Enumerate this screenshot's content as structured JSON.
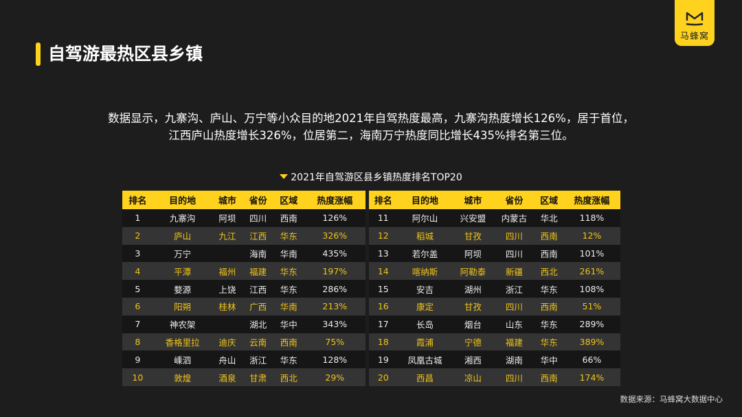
{
  "title": "自驾游最热区县乡镇",
  "logo_text": "马蜂窝",
  "description": "数据显示，九寨沟、庐山、万宁等小众目的地2021年自驾热度最高，九寨沟热度增长126%，居于首位，江西庐山热度增长326%，位居第二，海南万宁热度同比增长435%排名第三位。",
  "table_caption": "2021年自驾游区县乡镇热度排名TOP20",
  "headers": [
    "排名",
    "目的地",
    "城市",
    "省份",
    "区域",
    "热度涨幅"
  ],
  "left_rows": [
    [
      "1",
      "九寨沟",
      "阿坝",
      "四川",
      "西南",
      "126%"
    ],
    [
      "2",
      "庐山",
      "九江",
      "江西",
      "华东",
      "326%"
    ],
    [
      "3",
      "万宁",
      "",
      "海南",
      "华南",
      "435%"
    ],
    [
      "4",
      "平潭",
      "福州",
      "福建",
      "华东",
      "197%"
    ],
    [
      "5",
      "婺源",
      "上饶",
      "江西",
      "华东",
      "286%"
    ],
    [
      "6",
      "阳朔",
      "桂林",
      "广西",
      "华南",
      "213%"
    ],
    [
      "7",
      "神农架",
      "",
      "湖北",
      "华中",
      "343%"
    ],
    [
      "8",
      "香格里拉",
      "迪庆",
      "云南",
      "西南",
      "75%"
    ],
    [
      "9",
      "嵊泗",
      "舟山",
      "浙江",
      "华东",
      "128%"
    ],
    [
      "10",
      "敦煌",
      "酒泉",
      "甘肃",
      "西北",
      "29%"
    ]
  ],
  "right_rows": [
    [
      "11",
      "阿尔山",
      "兴安盟",
      "内蒙古",
      "华北",
      "118%"
    ],
    [
      "12",
      "稻城",
      "甘孜",
      "四川",
      "西南",
      "12%"
    ],
    [
      "13",
      "若尔盖",
      "阿坝",
      "四川",
      "西南",
      "101%"
    ],
    [
      "14",
      "喀纳斯",
      "阿勒泰",
      "新疆",
      "西北",
      "261%"
    ],
    [
      "15",
      "安吉",
      "湖州",
      "浙江",
      "华东",
      "108%"
    ],
    [
      "16",
      "康定",
      "甘孜",
      "四川",
      "西南",
      "51%"
    ],
    [
      "17",
      "长岛",
      "烟台",
      "山东",
      "华东",
      "289%"
    ],
    [
      "18",
      "霞浦",
      "宁德",
      "福建",
      "华东",
      "389%"
    ],
    [
      "19",
      "凤凰古城",
      "湘西",
      "湖南",
      "华中",
      "66%"
    ],
    [
      "20",
      "西昌",
      "凉山",
      "四川",
      "西南",
      "174%"
    ]
  ],
  "source": "数据来源：马蜂窝大数据中心",
  "colors": {
    "accent": "#ffd21e",
    "highlight_text": "#f0c419",
    "background": "#1d1d1d"
  }
}
